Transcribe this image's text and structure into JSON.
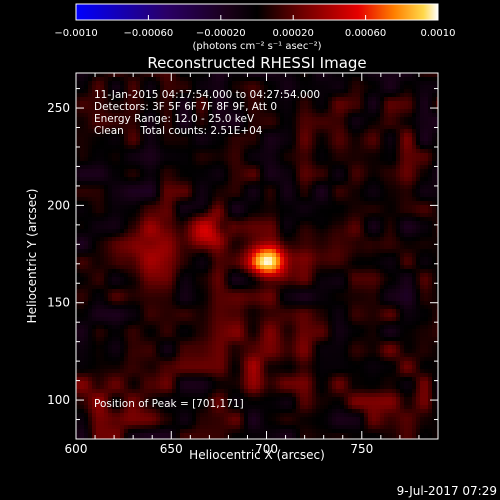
{
  "chart_data": {
    "type": "heatmap",
    "title": "Reconstructed RHESSI Image",
    "xlabel": "Heliocentric X (arcsec)",
    "ylabel": "Heliocentric Y (arcsec)",
    "xlim": [
      600,
      790
    ],
    "ylim": [
      80,
      268
    ],
    "x_ticks": [
      600,
      650,
      700,
      750
    ],
    "y_ticks": [
      100,
      150,
      200,
      250
    ],
    "colorbar": {
      "label": "(photons cm⁻² s⁻¹ asec⁻²)",
      "range": [
        -0.001,
        0.001
      ],
      "ticks": [
        -0.001,
        -0.0006,
        -0.0002,
        0.0002,
        0.0006,
        0.001
      ],
      "tick_labels": [
        "−0.0010",
        "−0.00060",
        "−0.00020",
        "0.00020",
        "0.00060",
        "0.0010"
      ]
    },
    "annotations": [
      "11-Jan-2015 04:17:54.000 to 04:27:54.000",
      "Detectors: 3F 5F 6F 7F 8F 9F, Att 0",
      "Energy Range: 12.0 - 25.0 keV",
      "Clean     Total counts: 2.51E+04"
    ],
    "peak_label": "Position of Peak = [701,171]",
    "peak": [
      701,
      171
    ],
    "peak_value": 0.001,
    "sources": [
      {
        "x": 701,
        "y": 171,
        "amplitude": 0.001,
        "sigma_x": 7,
        "sigma_y": 6
      },
      {
        "x": 668,
        "y": 188,
        "amplitude": 0.00062,
        "sigma_x": 7,
        "sigma_y": 6
      },
      {
        "x": 640,
        "y": 175,
        "amplitude": 0.00035,
        "sigma_x": 14,
        "sigma_y": 12
      },
      {
        "x": 730,
        "y": 178,
        "amplitude": 0.0003,
        "sigma_x": 18,
        "sigma_y": 10
      },
      {
        "x": 700,
        "y": 125,
        "amplitude": 0.00025,
        "sigma_x": 18,
        "sigma_y": 16
      },
      {
        "x": 620,
        "y": 105,
        "amplitude": 0.0002,
        "sigma_x": 16,
        "sigma_y": 14
      },
      {
        "x": 760,
        "y": 110,
        "amplitude": 0.00015,
        "sigma_x": 18,
        "sigma_y": 14
      },
      {
        "x": 755,
        "y": 230,
        "amplitude": 0.00012,
        "sigma_x": 18,
        "sigma_y": 14
      }
    ]
  },
  "footer": {
    "date_stamp": "9-Jul-2017 07:29"
  }
}
